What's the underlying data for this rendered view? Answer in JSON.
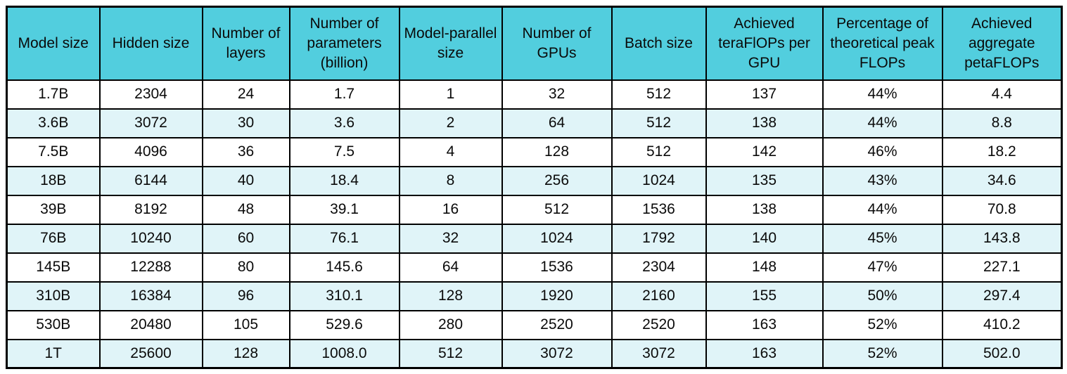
{
  "chart_data": {
    "type": "table",
    "title": "",
    "columns": [
      "Model size",
      "Hidden size",
      "Number of layers",
      "Number of parameters (billion)",
      "Model-parallel size",
      "Number of GPUs",
      "Batch size",
      "Achieved teraFlOPs per GPU",
      "Percentage of theoretical peak FLOPs",
      "Achieved aggregate petaFLOPs"
    ],
    "rows": [
      [
        "1.7B",
        "2304",
        "24",
        "1.7",
        "1",
        "32",
        "512",
        "137",
        "44%",
        "4.4"
      ],
      [
        "3.6B",
        "3072",
        "30",
        "3.6",
        "2",
        "64",
        "512",
        "138",
        "44%",
        "8.8"
      ],
      [
        "7.5B",
        "4096",
        "36",
        "7.5",
        "4",
        "128",
        "512",
        "142",
        "46%",
        "18.2"
      ],
      [
        "18B",
        "6144",
        "40",
        "18.4",
        "8",
        "256",
        "1024",
        "135",
        "43%",
        "34.6"
      ],
      [
        "39B",
        "8192",
        "48",
        "39.1",
        "16",
        "512",
        "1536",
        "138",
        "44%",
        "70.8"
      ],
      [
        "76B",
        "10240",
        "60",
        "76.1",
        "32",
        "1024",
        "1792",
        "140",
        "45%",
        "143.8"
      ],
      [
        "145B",
        "12288",
        "80",
        "145.6",
        "64",
        "1536",
        "2304",
        "148",
        "47%",
        "227.1"
      ],
      [
        "310B",
        "16384",
        "96",
        "310.1",
        "128",
        "1920",
        "2160",
        "155",
        "50%",
        "297.4"
      ],
      [
        "530B",
        "20480",
        "105",
        "529.6",
        "280",
        "2520",
        "2520",
        "163",
        "52%",
        "410.2"
      ],
      [
        "1T",
        "25600",
        "128",
        "1008.0",
        "512",
        "3072",
        "3072",
        "163",
        "52%",
        "502.0"
      ]
    ],
    "layout": {
      "header_position": "top",
      "row_striping": "alternating, first data row white, even rows pale blue",
      "grid": true
    },
    "colors": {
      "header_bg": "#52cede",
      "row_alt_bg": "#e0f4f8",
      "row_bg": "#ffffff",
      "border": "#000000",
      "text": "#0a0a0a"
    }
  }
}
